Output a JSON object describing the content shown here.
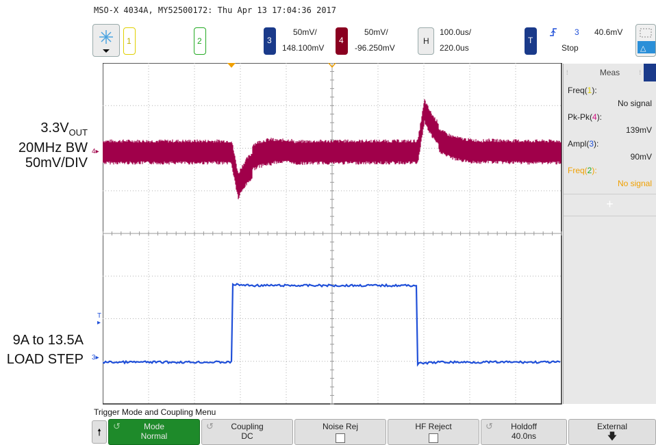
{
  "header": {
    "title": "MSO-X 4034A, MY52500172: Thu Apr 13 17:04:36 2017"
  },
  "toolbar": {
    "ch1_num": "1",
    "ch2_num": "2",
    "ch3": {
      "num": "3",
      "scale": "50mV/",
      "offset": "148.100mV"
    },
    "ch4": {
      "num": "4",
      "scale": "50mV/",
      "offset": "-96.250mV"
    },
    "horizontal": {
      "label": "H",
      "scale": "100.0us/",
      "delay": "220.0us"
    },
    "trigger": {
      "label": "T",
      "source": "3",
      "level": "40.6mV",
      "status": "Stop"
    }
  },
  "annotations": {
    "vout_line1": "3.3V",
    "vout_sub": "OUT",
    "vout_line2": "20MHz BW",
    "vout_line3": "50mV/DIV",
    "load_line1": "9A to 13.5A",
    "load_line2": "LOAD STEP"
  },
  "markers": {
    "ch4": "4",
    "ch3": "3",
    "trig": "T"
  },
  "meas": {
    "header": "Meas",
    "items": [
      {
        "label": "Freq(",
        "ch": "1",
        "close": "):",
        "value": "No signal"
      },
      {
        "label": "Pk-Pk(",
        "ch": "4",
        "close": "):",
        "value": "139mV"
      },
      {
        "label": "Ampl(",
        "ch": "3",
        "close": "):",
        "value": "90mV"
      },
      {
        "label": "Freq(",
        "ch": "2",
        "close": "):",
        "value": "No signal"
      }
    ],
    "add": "+"
  },
  "menu": {
    "title": "Trigger Mode and Coupling Menu",
    "keys": [
      {
        "label": "Mode",
        "value": "Normal"
      },
      {
        "label": "Coupling",
        "value": "DC"
      },
      {
        "label": "Noise Rej",
        "value": ""
      },
      {
        "label": "HF Reject",
        "value": ""
      },
      {
        "label": "Holdoff",
        "value": "40.0ns"
      },
      {
        "label": "External",
        "value": ""
      }
    ]
  },
  "colors": {
    "ch1": "#e0d000",
    "ch2": "#22aa22",
    "ch3": "#1f4fd8",
    "ch4": "#a0004a",
    "grid": "#b0b0b0",
    "trig_marker": "#f0a000"
  }
}
